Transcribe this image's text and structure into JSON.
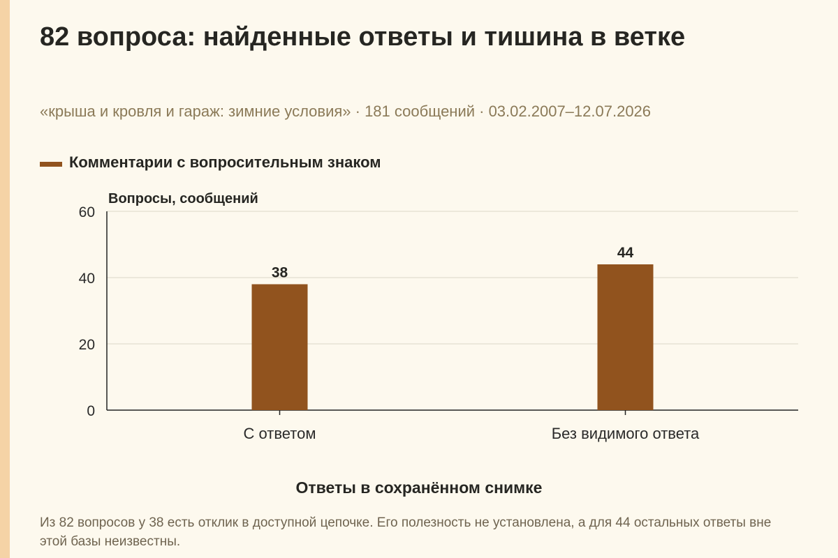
{
  "title": "82 вопроса: найденные ответы и тишина в ветке",
  "subtitle": "«крыша и кровля и гараж: зимние условия» · 181 сообщений · 03.02.2007–12.07.2026",
  "footnote": "Из 82 вопросов у 38 есть отклик в доступной цепочке. Его полезность не установлена, а для 44 остальных ответы вне этой базы неизвестны.",
  "colors": {
    "background": "#fdf9ee",
    "accent_strip": "#f5d3a6",
    "bar": "#91531e",
    "grid": "#dcd6c8"
  },
  "chart_data": {
    "type": "bar",
    "categories": [
      "С ответом",
      "Без видимого ответа"
    ],
    "series": [
      {
        "name": "Комментарии с вопросительным знаком",
        "values": [
          38,
          44
        ]
      }
    ],
    "data_labels": [
      "38",
      "44"
    ],
    "xlabel": "Ответы в сохранённом снимке",
    "ylabel": "Вопросы, сообщений",
    "ylim": [
      0,
      60
    ],
    "yticks": [
      0,
      20,
      40,
      60
    ],
    "grid": true,
    "legend_position": "top-left"
  }
}
